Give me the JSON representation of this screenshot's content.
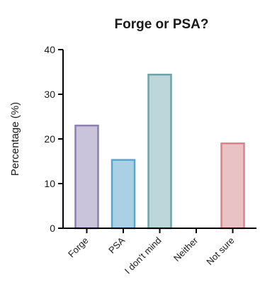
{
  "chart_data": {
    "type": "bar",
    "title": "Forge or PSA?",
    "xlabel": "",
    "ylabel": "Percentage (%)",
    "ylim": [
      0,
      40
    ],
    "yticks": [
      0,
      10,
      20,
      30,
      40
    ],
    "grid": false,
    "categories": [
      "Forge",
      "PSA",
      "I don't mind",
      "Neither",
      "Not sure"
    ],
    "values": [
      23,
      15.3,
      34.4,
      0,
      19
    ],
    "bar_fill_colors": [
      "#cac3dc",
      "#a9d1e3",
      "#bcd6d9",
      "#e6e6e6",
      "#e9c2c6"
    ],
    "bar_stroke_colors": [
      "#8c7fad",
      "#5aa6cc",
      "#6fa3a7",
      "#999999",
      "#d9828d"
    ]
  }
}
